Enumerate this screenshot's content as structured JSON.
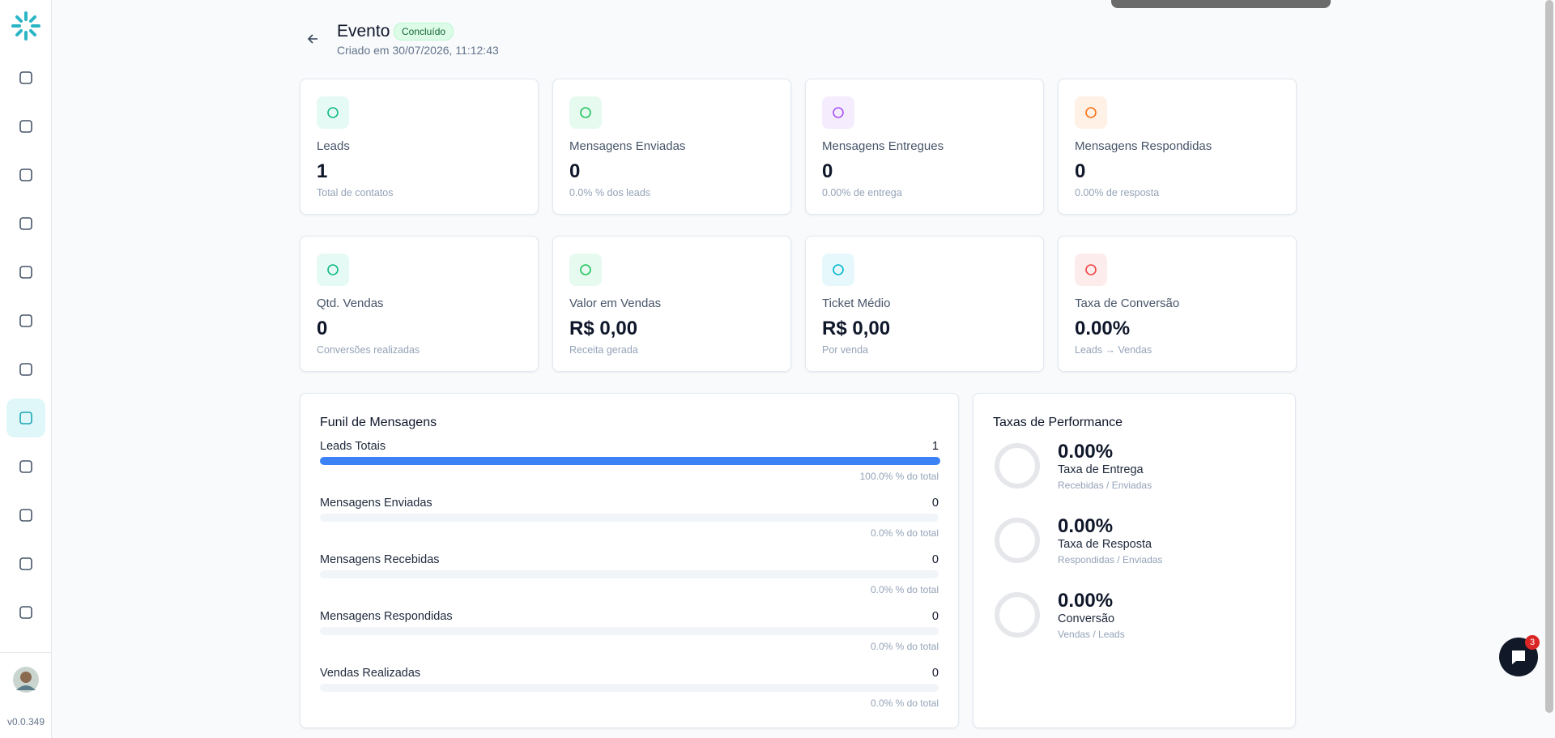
{
  "header": {
    "title": "Evento",
    "status": "Concluído",
    "created": "Criado em 30/07/2026, 11:12:43"
  },
  "stats": [
    {
      "label": "Leads",
      "value": "1",
      "sub": "Total de contatos"
    },
    {
      "label": "Mensagens Enviadas",
      "value": "0",
      "sub": "0.0% % dos leads"
    },
    {
      "label": "Mensagens Entregues",
      "value": "0",
      "sub": "0.00% de entrega"
    },
    {
      "label": "Mensagens Respondidas",
      "value": "0",
      "sub": "0.00% de resposta"
    },
    {
      "label": "Qtd. Vendas",
      "value": "0",
      "sub": "Conversões realizadas"
    },
    {
      "label": "Valor em Vendas",
      "value": "R$ 0,00",
      "sub": "Receita gerada"
    },
    {
      "label": "Ticket Médio",
      "value": "R$ 0,00",
      "sub": "Por venda"
    },
    {
      "label": "Taxa de Conversão",
      "value": "0.00%",
      "sub": "Leads → Vendas"
    }
  ],
  "funnel": {
    "title": "Funil de Mensagens",
    "rows": [
      {
        "label": "Leads Totais",
        "value": 1,
        "note": "100.0% % do total"
      },
      {
        "label": "Mensagens Enviadas",
        "value": 0,
        "note": "0.0% % do total"
      },
      {
        "label": "Mensagens Recebidas",
        "value": 0,
        "note": "0.0% % do total"
      },
      {
        "label": "Mensagens Respondidas",
        "value": 0,
        "note": "0.0% % do total"
      },
      {
        "label": "Vendas Realizadas",
        "value": 0,
        "note": "0.0% % do total"
      }
    ]
  },
  "performance": {
    "title": "Taxas de Performance",
    "items": [
      {
        "value": "0.00%",
        "label": "Taxa de Entrega",
        "sub": "Recebidas / Enviadas"
      },
      {
        "value": "0.00%",
        "label": "Taxa de Resposta",
        "sub": "Respondidas / Enviadas"
      },
      {
        "value": "0.00%",
        "label": "Conversão",
        "sub": "Vendas / Leads"
      }
    ]
  },
  "sidebar": {
    "version": "v0.0.349"
  },
  "chat": {
    "badge": "3"
  }
}
